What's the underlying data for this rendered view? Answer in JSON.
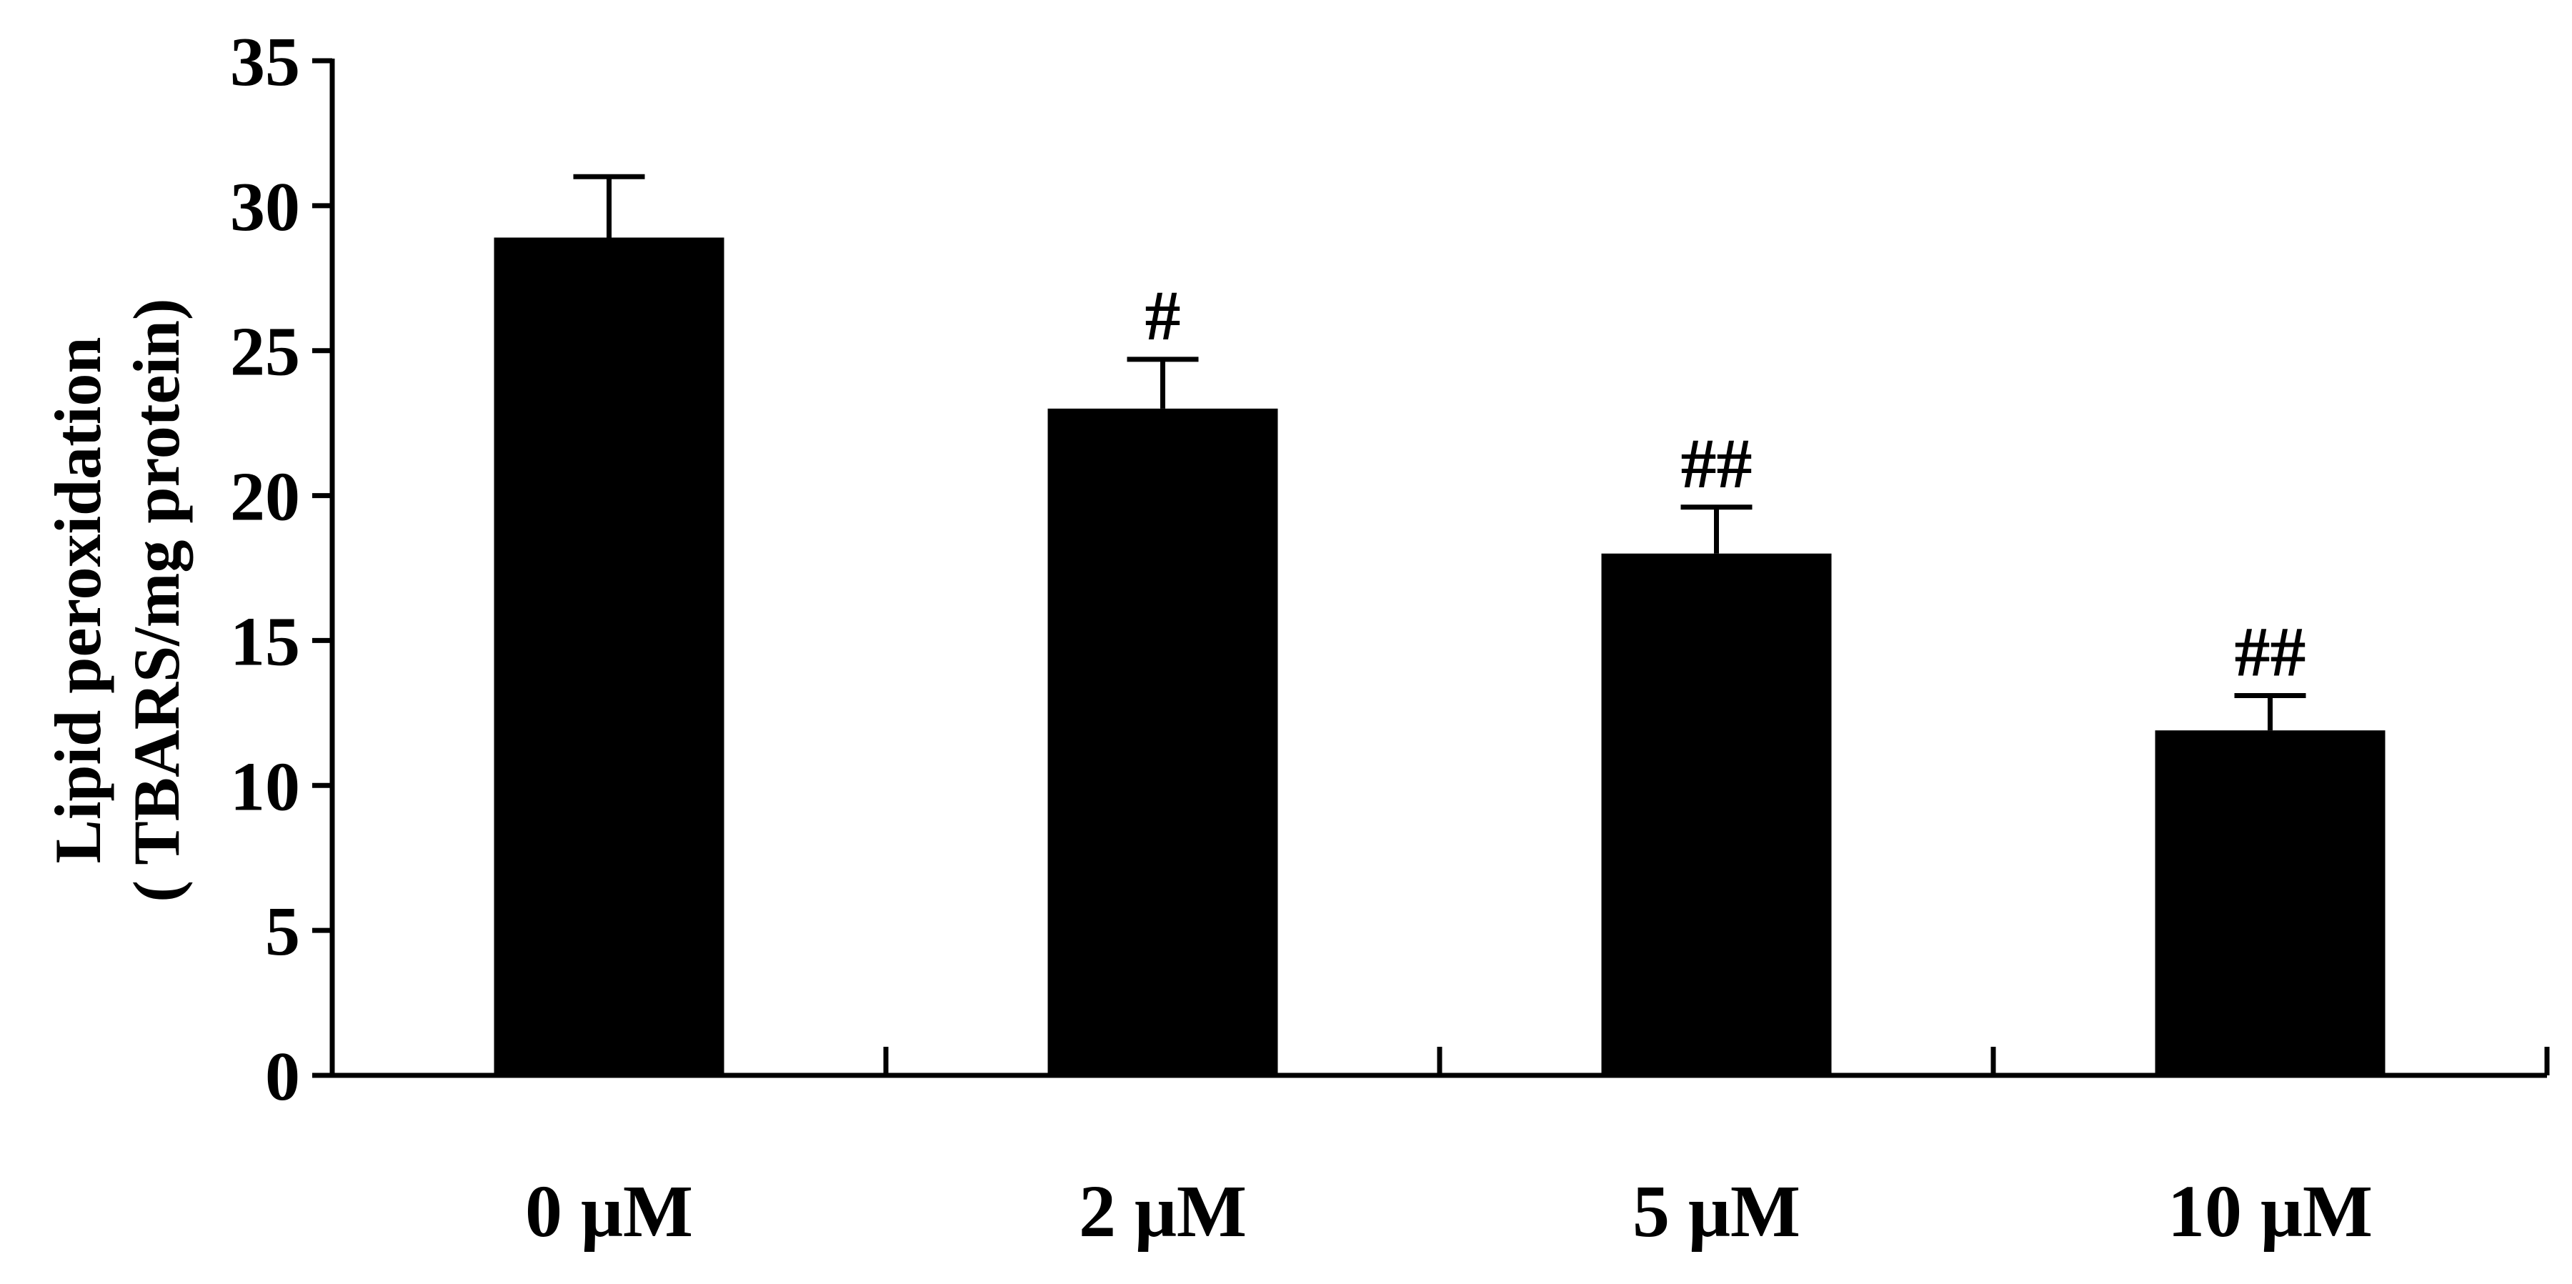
{
  "chart_data": {
    "type": "bar",
    "categories": [
      "0 μM",
      "2 μM",
      "5 μM",
      "10 μM"
    ],
    "values": [
      28.9,
      23.0,
      18.0,
      11.9
    ],
    "errors": [
      2.1,
      1.7,
      1.6,
      1.2
    ],
    "significance": [
      "",
      "#",
      "##",
      "##"
    ],
    "ylabel_line1": "Lipid peroxidation",
    "ylabel_line2": "( TBARS/mg protein)",
    "ylim": [
      0,
      35
    ],
    "yticks": [
      0,
      5,
      10,
      15,
      20,
      25,
      30,
      35
    ],
    "grid": false,
    "bar_color": "#000000"
  }
}
